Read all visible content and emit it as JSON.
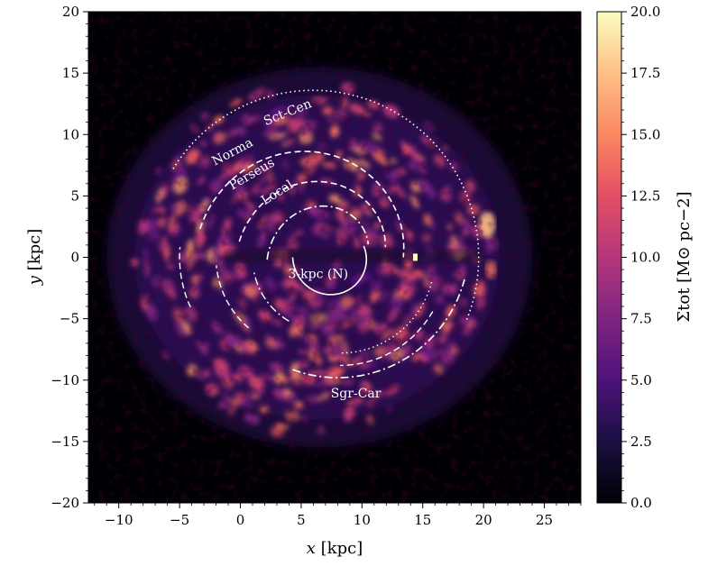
{
  "chart_data": {
    "type": "heatmap",
    "title": "",
    "xlabel_var": "x",
    "xlabel_unit": "[kpc]",
    "ylabel_var": "y",
    "ylabel_unit": "[kpc]",
    "xlim": [
      -12.5,
      28
    ],
    "ylim": [
      -20,
      20
    ],
    "xticks": [
      -10,
      -5,
      0,
      5,
      10,
      15,
      20,
      25
    ],
    "yticks": [
      -20,
      -15,
      -10,
      -5,
      0,
      5,
      10,
      15,
      20
    ],
    "colorbar": {
      "label": "Σtot [M⊙ pc−2]",
      "range": [
        0,
        20
      ],
      "ticks": [
        "0.0",
        "2.5",
        "5.0",
        "7.5",
        "10.0",
        "12.5",
        "15.0",
        "17.5",
        "20.0"
      ],
      "colormap": "magma"
    },
    "galactic_center": [
      0,
      0
    ],
    "sun_position": [
      8.2,
      0
    ],
    "arms": [
      {
        "name": "Sct-Cen",
        "style": "dotted",
        "label_at": [
          4,
          11.5
        ]
      },
      {
        "name": "Norma",
        "style": "dashed",
        "label_at": [
          -0.5,
          8.3
        ]
      },
      {
        "name": "Perseus",
        "style": "dashed",
        "label_at": [
          1.1,
          6.5
        ]
      },
      {
        "name": "Local",
        "style": "dashdot",
        "label_at": [
          3.2,
          5
        ]
      },
      {
        "name": "3-kpc (N)",
        "style": "solid",
        "label_at": [
          6.4,
          -1.7
        ]
      },
      {
        "name": "Sgr-Car",
        "style": "dashdot",
        "label_at": [
          9.5,
          -11.4
        ]
      }
    ]
  },
  "colors": {
    "background": "#000004",
    "arm_line": "#ffffff",
    "cmap_low": "#000004",
    "cmap_mid": "#b73779",
    "cmap_high": "#fcfdbf"
  }
}
